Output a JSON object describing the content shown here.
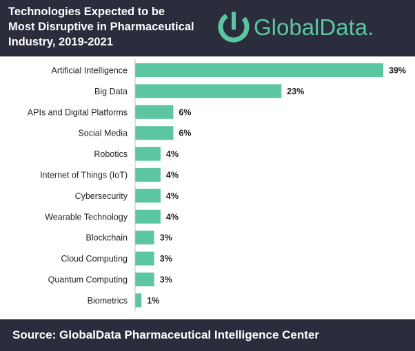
{
  "header": {
    "title_lines": [
      "Technologies Expected to be",
      "Most Disruptive in Pharmaceutical",
      "Industry, 2019-2021"
    ],
    "logo_text": "GlobalData."
  },
  "footer": {
    "source": "Source:  GlobalData Pharmaceutical Intelligence Center"
  },
  "colors": {
    "bar": "#5cc6a0",
    "header_bg": "#2b2d3d",
    "brand": "#5cc6a0"
  },
  "chart_data": {
    "type": "bar",
    "orientation": "horizontal",
    "title": "Technologies Expected to be Most Disruptive in Pharmaceutical Industry, 2019-2021",
    "categories": [
      "Artificial Intelligence",
      "Big Data",
      "APIs and Digital Platforms",
      "Social Media",
      "Robotics",
      "Internet of Things (IoT)",
      "Cybersecurity",
      "Wearable Technology",
      "Blockchain",
      "Cloud Computing",
      "Quantum Computing",
      "Biometrics"
    ],
    "values": [
      39,
      23,
      6,
      6,
      4,
      4,
      4,
      4,
      3,
      3,
      3,
      1
    ],
    "value_labels": [
      "39%",
      "23%",
      "6%",
      "6%",
      "4%",
      "4%",
      "4%",
      "4%",
      "3%",
      "3%",
      "3%",
      "1%"
    ],
    "xlim": [
      0,
      39
    ],
    "grid": false,
    "legend": "none"
  }
}
